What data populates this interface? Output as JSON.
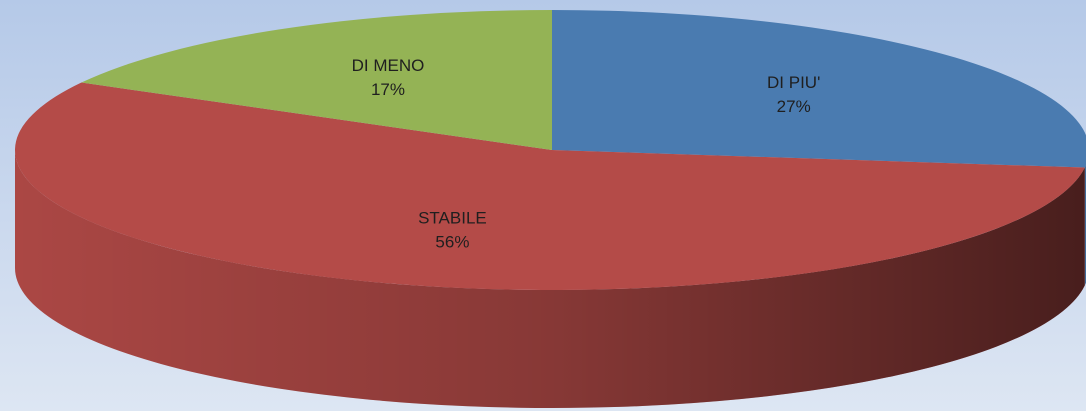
{
  "chart_data": {
    "type": "pie3d",
    "categories": [
      "DI PIU'",
      "STABILE",
      "DI MENO"
    ],
    "values": [
      27,
      56,
      17
    ],
    "value_labels": [
      "27%",
      "56%",
      "17%"
    ],
    "colors": [
      "#4a7bb0",
      "#b44b48",
      "#94b355"
    ]
  }
}
